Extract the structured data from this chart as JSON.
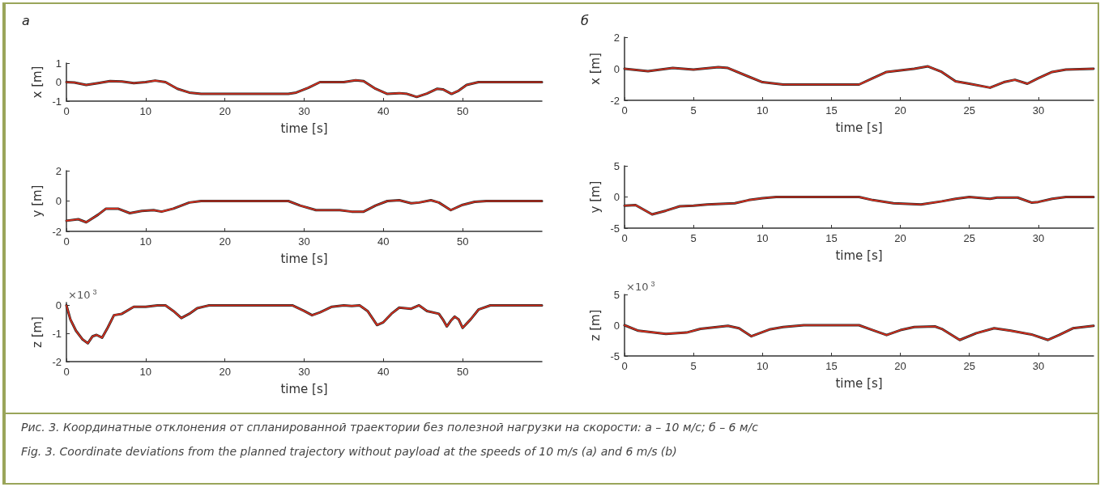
{
  "chart_data": [
    {
      "type": "line",
      "title": "а",
      "xlabel": "time [s]",
      "ylabel": "x [m]",
      "xlim": [
        0,
        60
      ],
      "xticks": [
        0,
        10,
        20,
        30,
        40,
        50
      ],
      "ylim": [
        -1,
        1
      ],
      "yticks": [
        -1,
        0,
        1
      ],
      "grid": false,
      "marker": "none",
      "line_style": "solid",
      "annotations": [
        "Рис. 3. Координатные отклонения от спланированной траектории без полезной нагрузки на скорости: а – 10 м/с; б – 6 м/с",
        "Fig. 3. Coordinate deviations from the planned trajectory without payload at the speeds of 10 m/s (a) and 6 m/s (b)"
      ],
      "x": [
        0,
        1,
        2.5,
        4,
        5.5,
        7,
        8.5,
        10,
        11.2,
        12.5,
        14,
        15.5,
        17,
        28,
        29,
        30.5,
        32,
        35,
        36.5,
        37.5,
        39,
        40.5,
        42,
        43,
        44.2,
        45.5,
        46.8,
        47.5,
        48.6,
        49.5,
        50.5,
        52,
        60
      ],
      "series": [
        {
          "color": "#222222",
          "values": [
            0,
            -0.02,
            -0.15,
            -0.05,
            0.05,
            0.03,
            -0.05,
            0,
            0.08,
            0,
            -0.35,
            -0.55,
            -0.62,
            -0.62,
            -0.55,
            -0.3,
            0,
            0,
            0.1,
            0.05,
            -0.35,
            -0.62,
            -0.58,
            -0.62,
            -0.78,
            -0.6,
            -0.35,
            -0.38,
            -0.62,
            -0.45,
            -0.15,
            0,
            0
          ]
        },
        {
          "color": "#e0301e",
          "values": [
            0,
            -0.02,
            -0.15,
            -0.05,
            0.05,
            0.03,
            -0.05,
            0,
            0.08,
            0,
            -0.35,
            -0.55,
            -0.62,
            -0.62,
            -0.55,
            -0.3,
            0,
            0,
            0.1,
            0.05,
            -0.35,
            -0.62,
            -0.58,
            -0.62,
            -0.78,
            -0.6,
            -0.35,
            -0.38,
            -0.62,
            -0.45,
            -0.15,
            0,
            0
          ]
        }
      ]
    },
    {
      "type": "line",
      "xlabel": "time [s]",
      "ylabel": "y [m]",
      "xlim": [
        0,
        60
      ],
      "xticks": [
        0,
        10,
        20,
        30,
        40,
        50
      ],
      "ylim": [
        -2,
        2
      ],
      "yticks": [
        -2,
        0,
        2
      ],
      "grid": false,
      "marker": "none",
      "line_style": "solid",
      "x": [
        0,
        1.5,
        2.5,
        4,
        5,
        6.5,
        8,
        9.5,
        11,
        12,
        13.5,
        15.5,
        17,
        28,
        29.5,
        31.5,
        34.5,
        36,
        37.5,
        39,
        40.5,
        42,
        43.5,
        44.5,
        46,
        47,
        48.5,
        50,
        51.5,
        53,
        60
      ],
      "series": [
        {
          "color": "#222222",
          "values": [
            -1.3,
            -1.2,
            -1.4,
            -0.9,
            -0.5,
            -0.5,
            -0.8,
            -0.65,
            -0.6,
            -0.7,
            -0.5,
            -0.1,
            0,
            0,
            -0.3,
            -0.6,
            -0.6,
            -0.7,
            -0.7,
            -0.3,
            0,
            0.05,
            -0.15,
            -0.1,
            0.05,
            -0.1,
            -0.6,
            -0.25,
            -0.05,
            0,
            0
          ]
        },
        {
          "color": "#e0301e",
          "values": [
            -1.3,
            -1.2,
            -1.4,
            -0.9,
            -0.5,
            -0.5,
            -0.8,
            -0.65,
            -0.6,
            -0.7,
            -0.5,
            -0.1,
            0,
            0,
            -0.3,
            -0.6,
            -0.6,
            -0.7,
            -0.7,
            -0.3,
            0,
            0.05,
            -0.15,
            -0.1,
            0.05,
            -0.1,
            -0.6,
            -0.25,
            -0.05,
            0,
            0
          ]
        }
      ]
    },
    {
      "type": "line",
      "xlabel": "time [s]",
      "ylabel": "z [m]",
      "xlim": [
        0,
        60
      ],
      "xticks": [
        0,
        10,
        20,
        30,
        40,
        50
      ],
      "ylim": [
        -2,
        0.1
      ],
      "yticks": [
        -2,
        -1,
        0
      ],
      "grid": false,
      "marker": "none",
      "line_style": "solid",
      "annotations": [
        "×10$^{3}$"
      ],
      "x": [
        0,
        0.5,
        1.2,
        2,
        2.7,
        3.3,
        3.8,
        4.5,
        5.2,
        6,
        7,
        8.5,
        10,
        11.5,
        12.5,
        13.5,
        14.5,
        15.5,
        16.5,
        18,
        28.5,
        30,
        31,
        32,
        33.5,
        35,
        36,
        37,
        38,
        39.2,
        40,
        41,
        42,
        43.5,
        44.5,
        45.5,
        47,
        47.5,
        48,
        48.5,
        49,
        49.5,
        50,
        51,
        52,
        53.5,
        60
      ],
      "series": [
        {
          "color": "#222222",
          "values": [
            0,
            -0.5,
            -0.9,
            -1.2,
            -1.35,
            -1.1,
            -1.05,
            -1.15,
            -0.8,
            -0.35,
            -0.3,
            -0.05,
            -0.05,
            0,
            0,
            -0.2,
            -0.45,
            -0.3,
            -0.1,
            0,
            0,
            -0.2,
            -0.35,
            -0.25,
            -0.05,
            0,
            -0.02,
            0,
            -0.2,
            -0.7,
            -0.6,
            -0.3,
            -0.08,
            -0.12,
            0,
            -0.2,
            -0.3,
            -0.5,
            -0.75,
            -0.55,
            -0.4,
            -0.5,
            -0.8,
            -0.5,
            -0.15,
            0,
            0
          ]
        },
        {
          "color": "#e0301e",
          "values": [
            0,
            -0.5,
            -0.9,
            -1.2,
            -1.35,
            -1.1,
            -1.05,
            -1.15,
            -0.8,
            -0.35,
            -0.3,
            -0.05,
            -0.05,
            0,
            0,
            -0.2,
            -0.45,
            -0.3,
            -0.1,
            0,
            0,
            -0.2,
            -0.35,
            -0.25,
            -0.05,
            0,
            -0.02,
            0,
            -0.2,
            -0.7,
            -0.6,
            -0.3,
            -0.08,
            -0.12,
            0,
            -0.2,
            -0.3,
            -0.5,
            -0.75,
            -0.55,
            -0.4,
            -0.5,
            -0.8,
            -0.5,
            -0.15,
            0,
            0
          ]
        }
      ]
    },
    {
      "type": "line",
      "title": "б",
      "xlabel": "time [s]",
      "ylabel": "x [m]",
      "xlim": [
        0,
        34
      ],
      "xticks": [
        0,
        5,
        10,
        15,
        20,
        25,
        30
      ],
      "ylim": [
        -2,
        2
      ],
      "yticks": [
        -2,
        0,
        2
      ],
      "grid": false,
      "marker": "none",
      "line_style": "solid",
      "x": [
        0,
        1.7,
        3.5,
        5,
        6.8,
        7.5,
        9,
        10,
        11.5,
        17,
        18,
        19,
        20,
        21,
        22,
        23,
        24,
        25,
        26.5,
        27.5,
        28.3,
        29.2,
        30,
        31,
        32,
        34
      ],
      "series": [
        {
          "color": "#222222",
          "values": [
            0,
            -0.15,
            0.05,
            -0.05,
            0.1,
            0.05,
            -0.5,
            -0.85,
            -1,
            -1,
            -0.6,
            -0.2,
            -0.1,
            0,
            0.15,
            -0.2,
            -0.8,
            -0.95,
            -1.2,
            -0.85,
            -0.7,
            -0.95,
            -0.6,
            -0.2,
            -0.05,
            0
          ]
        },
        {
          "color": "#e0301e",
          "values": [
            0,
            -0.15,
            0.05,
            -0.05,
            0.1,
            0.05,
            -0.5,
            -0.85,
            -1,
            -1,
            -0.6,
            -0.2,
            -0.1,
            0,
            0.15,
            -0.2,
            -0.8,
            -0.95,
            -1.2,
            -0.85,
            -0.7,
            -0.95,
            -0.6,
            -0.2,
            -0.05,
            0
          ]
        }
      ]
    },
    {
      "type": "line",
      "xlabel": "time [s]",
      "ylabel": "y [m]",
      "xlim": [
        0,
        34
      ],
      "xticks": [
        0,
        5,
        10,
        15,
        20,
        25,
        30
      ],
      "ylim": [
        -5,
        5
      ],
      "yticks": [
        -5,
        0,
        5
      ],
      "grid": false,
      "marker": "none",
      "line_style": "solid",
      "x": [
        0,
        0.8,
        2,
        3,
        4,
        5,
        6,
        8,
        9,
        10,
        11,
        17,
        18,
        19.5,
        21.5,
        23,
        24,
        25,
        26.5,
        27,
        28.5,
        29.5,
        30,
        31,
        32,
        34
      ],
      "series": [
        {
          "color": "#222222",
          "values": [
            -1.4,
            -1.3,
            -2.8,
            -2.2,
            -1.5,
            -1.4,
            -1.2,
            -1,
            -0.5,
            -0.2,
            0,
            0,
            -0.5,
            -1,
            -1.2,
            -0.7,
            -0.3,
            0,
            -0.3,
            -0.1,
            -0.1,
            -0.9,
            -0.8,
            -0.3,
            0,
            0
          ]
        },
        {
          "color": "#e0301e",
          "values": [
            -1.4,
            -1.3,
            -2.8,
            -2.2,
            -1.5,
            -1.4,
            -1.2,
            -1,
            -0.5,
            -0.2,
            0,
            0,
            -0.5,
            -1,
            -1.2,
            -0.7,
            -0.3,
            0,
            -0.3,
            -0.1,
            -0.1,
            -0.9,
            -0.8,
            -0.3,
            0,
            0
          ]
        }
      ]
    },
    {
      "type": "line",
      "xlabel": "time [s]",
      "ylabel": "z [m]",
      "xlim": [
        0,
        34
      ],
      "xticks": [
        0,
        5,
        10,
        15,
        20,
        25,
        30
      ],
      "ylim": [
        -5,
        5
      ],
      "yticks": [
        -5,
        0,
        5
      ],
      "grid": false,
      "marker": "none",
      "line_style": "solid",
      "annotations": [
        "×10$^{3}$"
      ],
      "x": [
        0,
        1,
        3,
        4.5,
        5.5,
        7.5,
        8.3,
        9.2,
        10.5,
        11.5,
        13,
        17,
        18,
        19,
        20,
        21,
        22.5,
        23,
        24.3,
        25.5,
        26.8,
        28,
        29.5,
        30.7,
        31.5,
        32.5,
        34
      ],
      "series": [
        {
          "color": "#222222",
          "values": [
            0,
            -0.9,
            -1.4,
            -1.2,
            -0.6,
            -0.1,
            -0.5,
            -1.8,
            -0.7,
            -0.3,
            0,
            0,
            -0.8,
            -1.6,
            -0.8,
            -0.3,
            -0.2,
            -0.6,
            -2.4,
            -1.3,
            -0.5,
            -0.9,
            -1.5,
            -2.4,
            -1.6,
            -0.5,
            -0.1
          ]
        },
        {
          "color": "#e0301e",
          "values": [
            0,
            -0.9,
            -1.4,
            -1.2,
            -0.6,
            -0.1,
            -0.5,
            -1.8,
            -0.7,
            -0.3,
            0,
            0,
            -0.8,
            -1.6,
            -0.8,
            -0.3,
            -0.2,
            -0.6,
            -2.4,
            -1.3,
            -0.5,
            -0.9,
            -1.5,
            -2.4,
            -1.6,
            -0.5,
            -0.1
          ]
        }
      ]
    }
  ]
}
